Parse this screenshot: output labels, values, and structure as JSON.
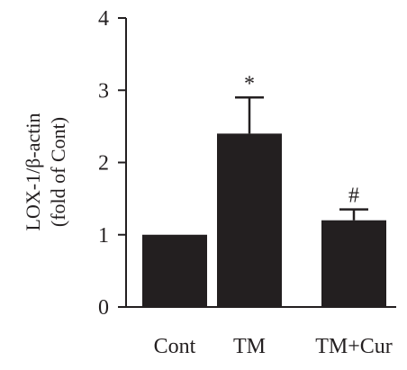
{
  "chart_data": {
    "type": "bar",
    "categories": [
      "Cont",
      "TM",
      "TM+Cur"
    ],
    "values": [
      1.0,
      2.4,
      1.2
    ],
    "errors": [
      0,
      0.5,
      0.15
    ],
    "annotations": [
      "",
      "*",
      "#"
    ],
    "ylabel_line1": "LOX-1/β-actin",
    "ylabel_line2": "(fold of Cont)",
    "xlabel": "",
    "ylim": [
      0,
      4
    ],
    "yticks": [
      0,
      1,
      2,
      3,
      4
    ],
    "grid": false,
    "legend": "none",
    "bar_color": "#231f20",
    "axis_color": "#231f20"
  }
}
